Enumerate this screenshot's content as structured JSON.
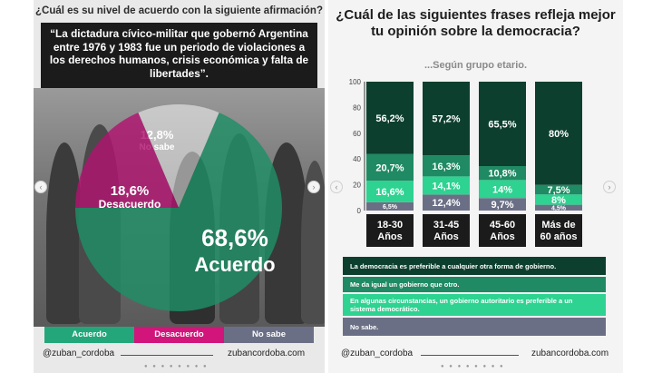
{
  "left": {
    "question": "¿Cuál es su nivel de acuerdo con la siguiente afirmación?",
    "quote": "“La dictadura cívico-militar que gobernó Argentina entre 1976 y 1983 fue un periodo de violaciones a los derechos humanos, crisis económica y falta de libertades”.",
    "legend": [
      {
        "label": "Acuerdo",
        "color": "#23a77a"
      },
      {
        "label": "Desacuerdo",
        "color": "#d1157b"
      },
      {
        "label": "No sabe",
        "color": "#6b6f86"
      }
    ],
    "footer_handle": "@zuban_cordoba",
    "footer_site": "zubancordoba.com"
  },
  "right": {
    "question": "¿Cuál de las siguientes frases refleja mejor tu opinión sobre la democracia?",
    "subtitle": "...Según grupo etario.",
    "footer_handle": "@zuban_cordoba",
    "footer_site": "zubancordoba.com"
  },
  "chart_data": [
    {
      "type": "pie",
      "categories": [
        "Acuerdo",
        "Desacuerdo",
        "No sabe"
      ],
      "values": [
        68.6,
        18.6,
        12.8
      ],
      "labels": [
        "68,6%",
        "18,6%",
        "12,8%"
      ],
      "slice_names": [
        "Acuerdo",
        "Desacuerdo",
        "No sabe"
      ],
      "colors": [
        "#1e8f67",
        "#b01370",
        "#ffffff"
      ]
    },
    {
      "type": "bar",
      "stacked": true,
      "categories": [
        "18-30 Años",
        "31-45 Años",
        "45-60 Años",
        "Más de 60 años"
      ],
      "yticks": [
        "0",
        "20",
        "40",
        "60",
        "80",
        "100"
      ],
      "ylim": [
        0,
        100
      ],
      "series": [
        {
          "name": "No sabe.",
          "color": "#6b6f86",
          "values": [
            6.5,
            12.4,
            9.7,
            4.5
          ],
          "labels": [
            "6,5%",
            "12,4%",
            "9,7%",
            "4,5%"
          ]
        },
        {
          "name": "En algunas circunstancias, un gobierno autoritario es preferible a un sistema democrático.",
          "color": "#2ed291",
          "values": [
            16.6,
            14.1,
            14,
            8
          ],
          "labels": [
            "16,6%",
            "14,1%",
            "14%",
            "8%"
          ]
        },
        {
          "name": "Me da igual un gobierno que otro.",
          "color": "#1f8a63",
          "values": [
            20.7,
            16.3,
            10.8,
            7.5
          ],
          "labels": [
            "20,7%",
            "16,3%",
            "10,8%",
            "7,5%"
          ]
        },
        {
          "name": "La democracia es preferible a cualquier otra forma de gobierno.",
          "color": "#0d3f2e",
          "values": [
            56.2,
            57.2,
            65.5,
            80
          ],
          "labels": [
            "56,2%",
            "57,2%",
            "65,5%",
            "80%"
          ]
        }
      ]
    }
  ]
}
